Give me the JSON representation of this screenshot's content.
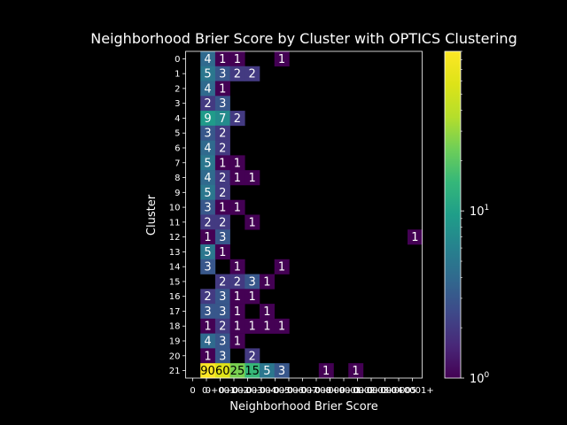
{
  "chart_data": {
    "type": "heatmap",
    "title": "Neighborhood Brier Score by Cluster with OPTICS Clustering",
    "xlabel": "Neighborhood Brier Score",
    "ylabel": "Cluster",
    "x_tick_labels": [
      "0",
      "0-",
      "0+001",
      "0+002",
      "0+003",
      "0+004",
      "0+005",
      "0+006",
      "0+007",
      "0+008",
      "0+009",
      "0+0001",
      "0+0002",
      "0+0003",
      "0+0004",
      "0+0005",
      "0+0001+"
    ],
    "y_tick_labels": [
      "0",
      "1",
      "2",
      "3",
      "4",
      "5",
      "6",
      "7",
      "8",
      "9",
      "10",
      "11",
      "12",
      "13",
      "14",
      "15",
      "16",
      "17",
      "18",
      "19",
      "20",
      "21"
    ],
    "color_scale": "log",
    "colormap": "viridis",
    "vmin": 1,
    "vmax": 90,
    "colorbar_ticks": [
      {
        "value": 1,
        "label_base": "10",
        "label_exp": "0"
      },
      {
        "value": 10,
        "label_base": "10",
        "label_exp": "1"
      }
    ],
    "background": "#000000",
    "rows": [
      [
        null,
        4,
        1,
        1,
        null,
        null,
        1,
        null,
        null,
        null,
        null,
        null,
        null,
        null,
        null,
        null
      ],
      [
        null,
        5,
        3,
        2,
        2,
        null,
        null,
        null,
        null,
        null,
        null,
        null,
        null,
        null,
        null,
        null
      ],
      [
        null,
        4,
        1,
        null,
        null,
        null,
        null,
        null,
        null,
        null,
        null,
        null,
        null,
        null,
        null,
        null
      ],
      [
        null,
        2,
        3,
        null,
        null,
        null,
        null,
        null,
        null,
        null,
        null,
        null,
        null,
        null,
        null,
        null
      ],
      [
        null,
        9,
        7,
        2,
        null,
        null,
        null,
        null,
        null,
        null,
        null,
        null,
        null,
        null,
        null,
        null
      ],
      [
        null,
        3,
        2,
        null,
        null,
        null,
        null,
        null,
        null,
        null,
        null,
        null,
        null,
        null,
        null,
        null
      ],
      [
        null,
        4,
        2,
        null,
        null,
        null,
        null,
        null,
        null,
        null,
        null,
        null,
        null,
        null,
        null,
        null
      ],
      [
        null,
        5,
        1,
        1,
        null,
        null,
        null,
        null,
        null,
        null,
        null,
        null,
        null,
        null,
        null,
        null
      ],
      [
        null,
        4,
        2,
        1,
        1,
        null,
        null,
        null,
        null,
        null,
        null,
        null,
        null,
        null,
        null,
        null
      ],
      [
        null,
        5,
        2,
        null,
        null,
        null,
        null,
        null,
        null,
        null,
        null,
        null,
        null,
        null,
        null,
        null
      ],
      [
        null,
        3,
        1,
        1,
        null,
        null,
        null,
        null,
        null,
        null,
        null,
        null,
        null,
        null,
        null,
        null
      ],
      [
        null,
        2,
        2,
        null,
        1,
        null,
        null,
        null,
        null,
        null,
        null,
        null,
        null,
        null,
        null,
        null
      ],
      [
        null,
        1,
        3,
        null,
        null,
        null,
        null,
        null,
        null,
        null,
        null,
        null,
        null,
        null,
        null,
        1
      ],
      [
        null,
        5,
        1,
        null,
        null,
        null,
        null,
        null,
        null,
        null,
        null,
        null,
        null,
        null,
        null,
        null
      ],
      [
        null,
        3,
        null,
        1,
        null,
        null,
        1,
        null,
        null,
        null,
        null,
        null,
        null,
        null,
        null,
        null
      ],
      [
        null,
        null,
        2,
        2,
        3,
        1,
        null,
        null,
        null,
        null,
        null,
        null,
        null,
        null,
        null,
        null
      ],
      [
        null,
        2,
        3,
        1,
        1,
        null,
        null,
        null,
        null,
        null,
        null,
        null,
        null,
        null,
        null,
        null
      ],
      [
        null,
        3,
        3,
        1,
        null,
        1,
        null,
        null,
        null,
        null,
        null,
        null,
        null,
        null,
        null,
        null
      ],
      [
        null,
        1,
        2,
        1,
        1,
        1,
        1,
        null,
        null,
        null,
        null,
        null,
        null,
        null,
        null,
        null
      ],
      [
        null,
        4,
        3,
        1,
        null,
        null,
        null,
        null,
        null,
        null,
        null,
        null,
        null,
        null,
        null,
        null
      ],
      [
        null,
        1,
        3,
        null,
        2,
        null,
        null,
        null,
        null,
        null,
        null,
        null,
        null,
        null,
        null,
        null
      ],
      [
        null,
        90,
        60,
        25,
        15,
        5,
        3,
        null,
        null,
        1,
        null,
        1,
        null,
        null,
        null,
        null
      ]
    ]
  }
}
